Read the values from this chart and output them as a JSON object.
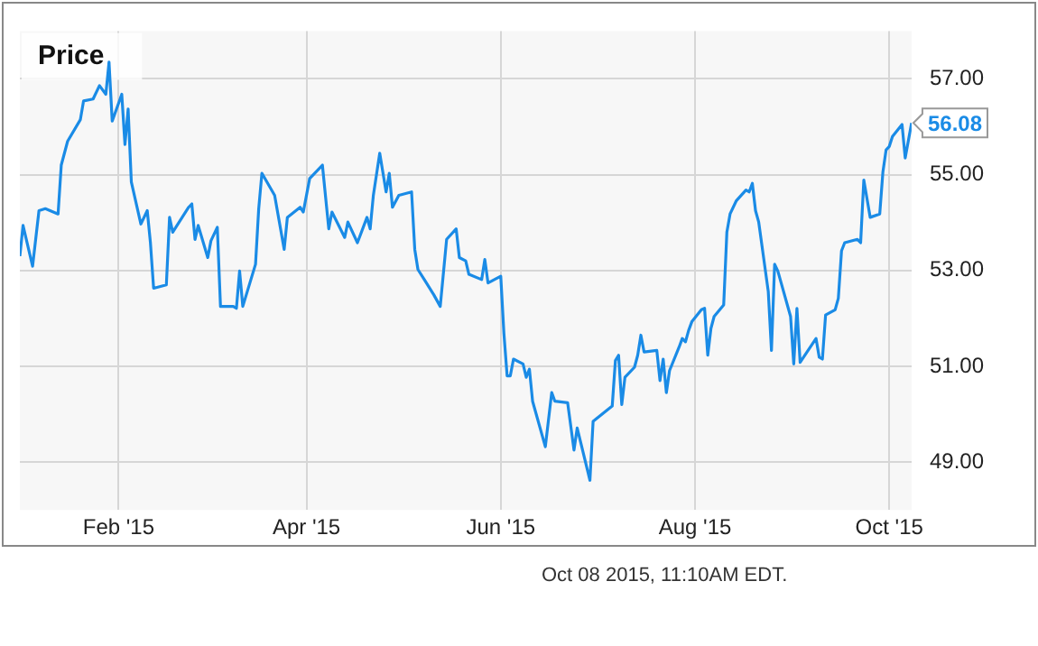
{
  "chart_data": {
    "type": "line",
    "title": "Price",
    "color": "#1a8be6",
    "x": [
      "2015-01-01",
      "2015-01-02",
      "2015-01-05",
      "2015-01-07",
      "2015-01-09",
      "2015-01-13",
      "2015-01-14",
      "2015-01-16",
      "2015-01-20",
      "2015-01-21",
      "2015-01-24",
      "2015-01-26",
      "2015-01-28",
      "2015-01-29",
      "2015-01-30",
      "2015-02-02",
      "2015-02-03",
      "2015-02-04",
      "2015-02-05",
      "2015-02-08",
      "2015-02-10",
      "2015-02-11",
      "2015-02-12",
      "2015-02-16",
      "2015-02-17",
      "2015-02-18",
      "2015-02-23",
      "2015-02-24",
      "2015-02-25",
      "2015-02-26",
      "2015-03-01",
      "2015-03-02",
      "2015-03-04",
      "2015-03-05",
      "2015-03-09",
      "2015-03-10",
      "2015-03-11",
      "2015-03-12",
      "2015-03-16",
      "2015-03-17",
      "2015-03-18",
      "2015-03-22",
      "2015-03-25",
      "2015-03-26",
      "2015-03-30",
      "2015-03-31",
      "2015-04-02",
      "2015-04-06",
      "2015-04-08",
      "2015-04-09",
      "2015-04-13",
      "2015-04-14",
      "2015-04-17",
      "2015-04-20",
      "2015-04-21",
      "2015-04-22",
      "2015-04-24",
      "2015-04-26",
      "2015-04-27",
      "2015-04-28",
      "2015-04-30",
      "2015-05-04",
      "2015-05-05",
      "2015-05-06",
      "2015-05-08",
      "2015-05-11",
      "2015-05-13",
      "2015-05-15",
      "2015-05-18",
      "2015-05-19",
      "2015-05-21",
      "2015-05-22",
      "2015-05-26",
      "2015-05-27",
      "2015-05-28",
      "2015-06-01",
      "2015-06-02",
      "2015-06-03",
      "2015-06-04",
      "2015-06-05",
      "2015-06-08",
      "2015-06-09",
      "2015-06-10",
      "2015-06-11",
      "2015-06-15",
      "2015-06-17",
      "2015-06-18",
      "2015-06-22",
      "2015-06-24",
      "2015-06-25",
      "2015-06-29",
      "2015-06-30",
      "2015-07-06",
      "2015-07-07",
      "2015-07-08",
      "2015-07-09",
      "2015-07-10",
      "2015-07-13",
      "2015-07-14",
      "2015-07-15",
      "2015-07-16",
      "2015-07-20",
      "2015-07-21",
      "2015-07-22",
      "2015-07-23",
      "2015-07-24",
      "2015-07-27",
      "2015-07-28",
      "2015-07-29",
      "2015-07-30",
      "2015-07-31",
      "2015-08-03",
      "2015-08-04",
      "2015-08-05",
      "2015-08-06",
      "2015-08-07",
      "2015-08-10",
      "2015-08-11",
      "2015-08-12",
      "2015-08-14",
      "2015-08-17",
      "2015-08-18",
      "2015-08-19",
      "2015-08-20",
      "2015-08-21",
      "2015-08-24",
      "2015-08-25",
      "2015-08-26",
      "2015-08-27",
      "2015-08-31",
      "2015-09-01",
      "2015-09-02",
      "2015-09-03",
      "2015-09-08",
      "2015-09-09",
      "2015-09-10",
      "2015-09-11",
      "2015-09-14",
      "2015-09-15",
      "2015-09-16",
      "2015-09-17",
      "2015-09-21",
      "2015-09-22",
      "2015-09-23",
      "2015-09-25",
      "2015-09-28",
      "2015-09-29",
      "2015-09-30",
      "2015-10-01",
      "2015-10-02",
      "2015-10-05",
      "2015-10-06",
      "2015-10-08"
    ],
    "values": [
      53.3,
      53.94,
      53.09,
      54.25,
      54.29,
      54.18,
      55.2,
      55.7,
      56.15,
      56.54,
      56.58,
      56.86,
      56.68,
      57.35,
      56.12,
      56.68,
      55.63,
      56.37,
      54.85,
      53.97,
      54.25,
      53.58,
      52.63,
      52.7,
      54.11,
      53.8,
      54.32,
      54.39,
      53.65,
      53.94,
      53.27,
      53.62,
      53.9,
      52.25,
      52.25,
      52.21,
      52.99,
      52.25,
      53.13,
      54.29,
      55.03,
      54.57,
      53.44,
      54.11,
      54.32,
      54.22,
      54.92,
      55.2,
      53.87,
      54.22,
      53.69,
      54.01,
      53.58,
      54.11,
      53.87,
      54.57,
      55.45,
      54.64,
      55.03,
      54.32,
      54.57,
      54.64,
      53.44,
      53.02,
      52.81,
      52.49,
      52.25,
      53.65,
      53.87,
      53.27,
      53.2,
      52.92,
      52.81,
      53.23,
      52.74,
      52.88,
      51.68,
      50.8,
      50.8,
      51.15,
      51.05,
      50.77,
      50.94,
      50.27,
      49.32,
      50.45,
      50.27,
      50.24,
      49.25,
      49.71,
      48.62,
      49.85,
      50.17,
      51.12,
      51.23,
      50.2,
      50.77,
      50.98,
      51.23,
      51.65,
      51.3,
      51.33,
      50.7,
      51.15,
      50.45,
      50.91,
      51.4,
      51.58,
      51.51,
      51.75,
      51.93,
      52.18,
      52.21,
      51.23,
      51.79,
      52.04,
      52.28,
      53.8,
      54.18,
      54.46,
      54.68,
      54.64,
      54.82,
      54.25,
      54.01,
      52.56,
      51.33,
      53.13,
      52.99,
      52.04,
      51.05,
      52.21,
      51.08,
      51.58,
      51.19,
      51.15,
      52.07,
      52.18,
      52.42,
      53.41,
      53.58,
      53.65,
      53.58,
      54.89,
      54.11,
      54.18,
      55.06,
      55.52,
      55.59,
      55.8,
      56.05,
      55.35,
      56.08
    ],
    "xlim": [
      "2015-01-01",
      "2015-10-08"
    ],
    "xticks": [
      {
        "value": "2015-02-01",
        "label": "Feb '15"
      },
      {
        "value": "2015-04-01",
        "label": "Apr '15"
      },
      {
        "value": "2015-06-01",
        "label": "Jun '15"
      },
      {
        "value": "2015-08-01",
        "label": "Aug '15"
      },
      {
        "value": "2015-10-01",
        "label": "Oct '15"
      }
    ],
    "ylim": [
      48,
      58
    ],
    "yticks": [
      {
        "value": 49,
        "label": "49.00"
      },
      {
        "value": 51,
        "label": "51.00"
      },
      {
        "value": 53,
        "label": "53.00"
      },
      {
        "value": 55,
        "label": "55.00"
      },
      {
        "value": 57,
        "label": "57.00"
      }
    ],
    "grid": true,
    "annotations": [
      {
        "text": "56.08",
        "x": "2015-10-08",
        "y": 56.08
      },
      "Oct 08 2015, 11:10AM EDT."
    ]
  }
}
